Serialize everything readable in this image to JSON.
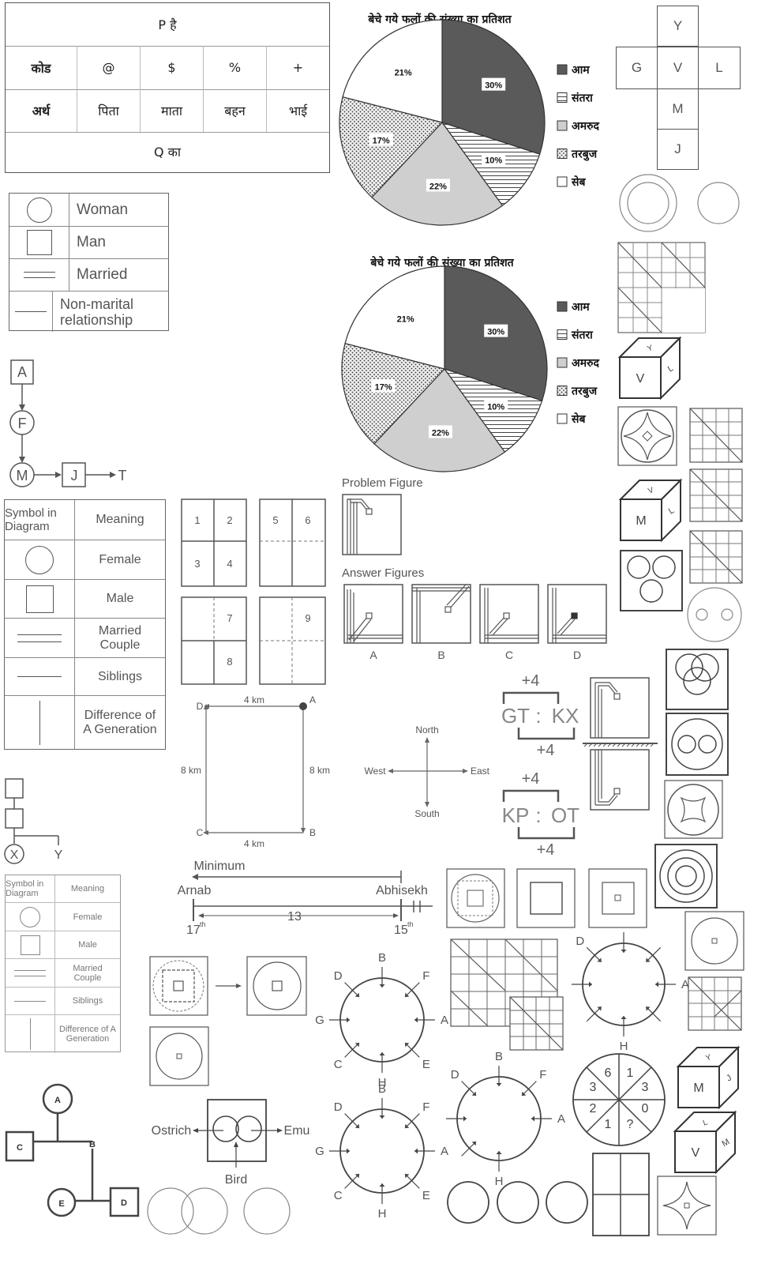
{
  "code_table": {
    "header": "P है",
    "row_codes": {
      "label": "कोड",
      "values": [
        "@",
        "$",
        "%",
        "+"
      ]
    },
    "row_meaning": {
      "label": "अर्थ",
      "values": [
        "पिता",
        "माता",
        "बहन",
        "भाई"
      ]
    },
    "footer": "Q का"
  },
  "pie_legend_labels": [
    "आम",
    "संतरा",
    "अमरुद",
    "तरबुज",
    "सेब"
  ],
  "chart_data": [
    {
      "type": "pie",
      "title": "बेचे गये फलों की संख्या का प्रतिशत",
      "categories": [
        "आम",
        "संतरा",
        "अमरुद",
        "तरबुज",
        "सेब"
      ],
      "values": [
        30,
        10,
        22,
        17,
        21
      ],
      "value_labels": [
        "30%",
        "10%",
        "22%",
        "17%",
        "21%"
      ],
      "colors": [
        "#5a5a5a",
        "hatch-horizontal",
        "#cfcfcf",
        "dotted",
        "#ffffff"
      ],
      "legend": "right"
    },
    {
      "type": "pie",
      "title": "बेचे गये फलों की संख्या का प्रतिशत",
      "categories": [
        "आम",
        "संतरा",
        "अमरुद",
        "तरबुज",
        "सेब"
      ],
      "values": [
        30,
        10,
        22,
        17,
        21
      ],
      "value_labels": [
        "30%",
        "10%",
        "22%",
        "17%",
        "21%"
      ],
      "colors": [
        "#5a5a5a",
        "hatch-horizontal",
        "#cfcfcf",
        "dotted",
        "#ffffff"
      ],
      "legend": "right"
    }
  ],
  "legend_small": {
    "rows": [
      "Woman",
      "Man",
      "Married",
      "Non-marital relationship"
    ]
  },
  "chain": {
    "nodes": [
      "A",
      "F",
      "M",
      "J",
      "T"
    ]
  },
  "symbol_table_1": {
    "header": [
      "Symbol in Diagram",
      "Meaning"
    ],
    "rows": [
      "Female",
      "Male",
      "Married Couple",
      "Siblings",
      "Difference of A Generation"
    ]
  },
  "symbol_table_2": {
    "header": [
      "Symbol in Diagram",
      "Meaning"
    ],
    "rows": [
      "Female",
      "Male",
      "Married Couple",
      "Siblings",
      "Difference of A Generation"
    ]
  },
  "fold_grids": {
    "labels": [
      "1",
      "2",
      "3",
      "4",
      "5",
      "6",
      "7",
      "8",
      "9"
    ]
  },
  "rect_path": {
    "corners": [
      "D",
      "A",
      "C",
      "B"
    ],
    "sides": [
      "4 km",
      "8 km",
      "8 km",
      "4 km"
    ]
  },
  "compass": {
    "north": "North",
    "south": "South",
    "east": "East",
    "west": "West"
  },
  "problem_figure": {
    "title": "Problem Figure",
    "answers_title": "Answer Figures",
    "answer_labels": [
      "A",
      "B",
      "C",
      "D"
    ]
  },
  "letter_shift": [
    {
      "top": "+4",
      "left": "GT",
      "colon": ":",
      "right": "KX",
      "bottom": "+4"
    },
    {
      "top": "+4",
      "left": "KP",
      "colon": ":",
      "right": "OT",
      "bottom": "+4"
    }
  ],
  "ranking": {
    "minimum": "Minimum",
    "left_name": "Arnab",
    "right_name": "Abhisekh",
    "left_rank": "17",
    "right_rank": "15",
    "suffix": "th",
    "gap": "13"
  },
  "cube_faces": {
    "top": "Y",
    "left": "G",
    "center": "V",
    "right": "L",
    "below1": "M",
    "below2": "J"
  },
  "cubes": [
    {
      "front": "V",
      "top": "Y",
      "side": "L"
    },
    {
      "front": "M",
      "top": "V",
      "side": "L"
    },
    {
      "front": "M",
      "top": "Y",
      "side": "J"
    },
    {
      "front": "V",
      "top": "L",
      "side": "M"
    }
  ],
  "direction_circles": [
    {
      "labels": [
        "B",
        "F",
        "A",
        "E",
        "H",
        "C",
        "G",
        "D"
      ]
    },
    {
      "labels": [
        "B",
        "F",
        "A",
        "E",
        "H",
        "C",
        "G",
        "D"
      ]
    },
    {
      "labels": [
        "D",
        "A",
        "H"
      ]
    },
    {
      "labels": [
        "D",
        "B",
        "F",
        "A",
        "H"
      ]
    }
  ],
  "venn_bird": {
    "left": "Ostrich",
    "right": "Emu",
    "bottom": "Bird"
  },
  "number_wheel": {
    "values": [
      "6",
      "1",
      "3",
      "0",
      "?",
      "1",
      "2",
      "3"
    ]
  },
  "family_tree": {
    "nodes": [
      "A",
      "B",
      "C",
      "E",
      "D"
    ]
  },
  "mini_tree": {
    "nodes": [
      "X",
      "Y"
    ]
  }
}
